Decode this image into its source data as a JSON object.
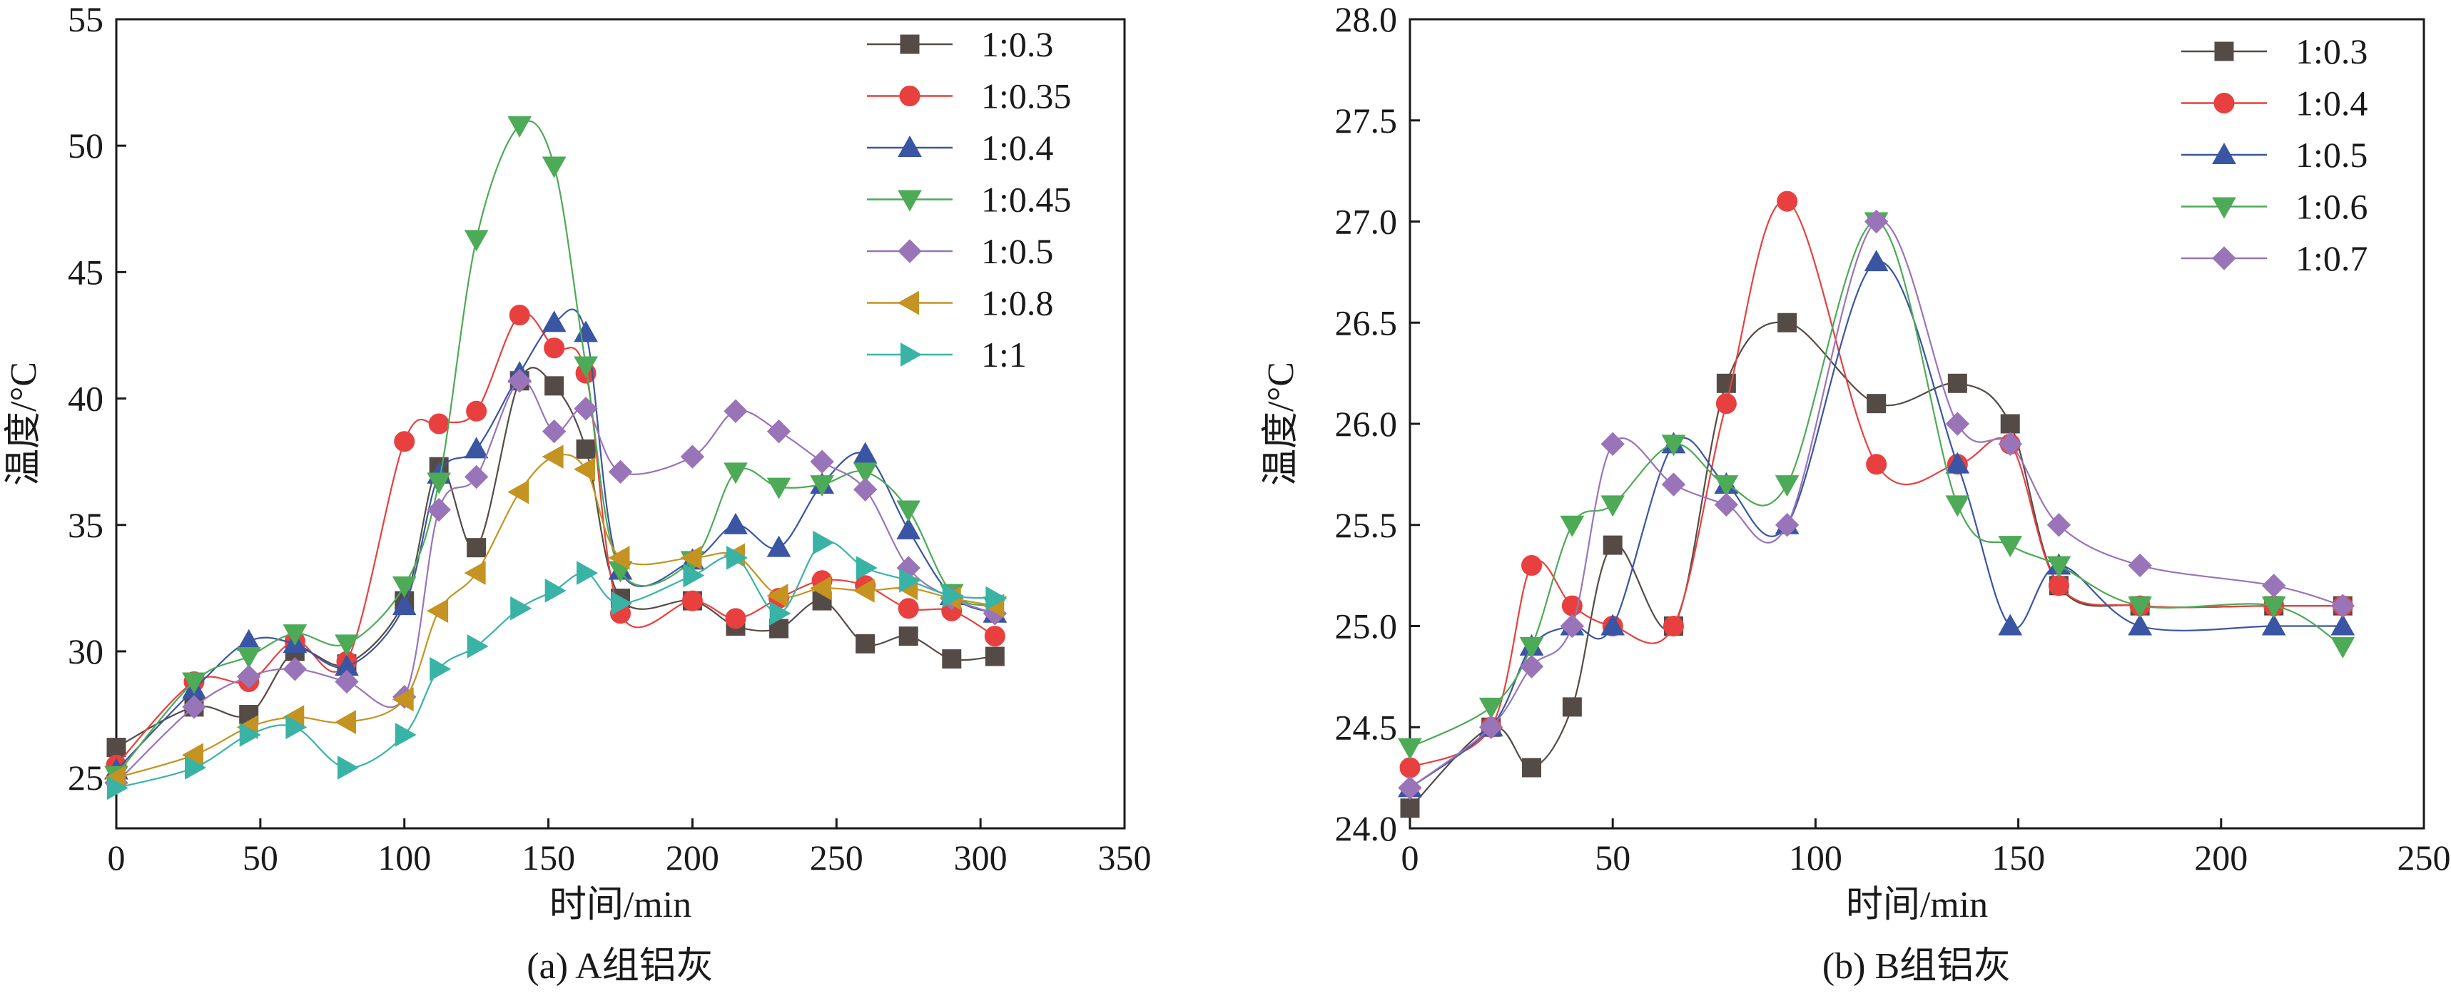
{
  "figure": {
    "panels": [
      "a",
      "b"
    ]
  },
  "chart_data": [
    {
      "type": "line",
      "panel": "a",
      "caption": "(a) A组铝灰",
      "title": "",
      "xlabel": "时间/min",
      "ylabel": "温度/°C",
      "xlim": [
        0,
        350
      ],
      "ylim": [
        23,
        55
      ],
      "xticks": [
        0,
        50,
        100,
        150,
        200,
        250,
        300,
        350
      ],
      "yticks": [
        25,
        30,
        35,
        40,
        45,
        50,
        55
      ],
      "legend_position": "top-right",
      "series": [
        {
          "name": "1:0.3",
          "color": "#554b46",
          "marker": "square",
          "points": [
            [
              0,
              26.2
            ],
            [
              27,
              27.8
            ],
            [
              46,
              27.5
            ],
            [
              62,
              30
            ],
            [
              80,
              29.5
            ],
            [
              100,
              32
            ],
            [
              112,
              37.3
            ],
            [
              125,
              34.1
            ],
            [
              140,
              40.7
            ],
            [
              152,
              40.5
            ],
            [
              163,
              38
            ],
            [
              175,
              32.1
            ],
            [
              200,
              32
            ],
            [
              215,
              31
            ],
            [
              230,
              30.9
            ],
            [
              245,
              32
            ],
            [
              260,
              30.3
            ],
            [
              275,
              30.6
            ],
            [
              290,
              29.7
            ],
            [
              305,
              29.8
            ]
          ]
        },
        {
          "name": "1:0.35",
          "color": "#e8403e",
          "marker": "circle",
          "points": [
            [
              0,
              25.5
            ],
            [
              27,
              28.8
            ],
            [
              46,
              28.8
            ],
            [
              62,
              30.4
            ],
            [
              80,
              29.6
            ],
            [
              100,
              38.3
            ],
            [
              112,
              39
            ],
            [
              125,
              39.5
            ],
            [
              140,
              43.3
            ],
            [
              152,
              42
            ],
            [
              163,
              41
            ],
            [
              175,
              31.5
            ],
            [
              200,
              32
            ],
            [
              215,
              31.3
            ],
            [
              230,
              32.1
            ],
            [
              245,
              32.8
            ],
            [
              260,
              32.6
            ],
            [
              275,
              31.7
            ],
            [
              290,
              31.6
            ],
            [
              305,
              30.6
            ]
          ]
        },
        {
          "name": "1:0.4",
          "color": "#3a55a3",
          "marker": "triangle-up",
          "points": [
            [
              0,
              25.3
            ],
            [
              27,
              28.5
            ],
            [
              46,
              30.4
            ],
            [
              62,
              30.3
            ],
            [
              80,
              29.4
            ],
            [
              100,
              31.8
            ],
            [
              112,
              37
            ],
            [
              125,
              38
            ],
            [
              140,
              41
            ],
            [
              152,
              43
            ],
            [
              163,
              42.6
            ],
            [
              175,
              33.2
            ],
            [
              200,
              33.6
            ],
            [
              215,
              35
            ],
            [
              230,
              34.1
            ],
            [
              245,
              36.6
            ],
            [
              260,
              37.8
            ],
            [
              275,
              34.8
            ],
            [
              290,
              32.2
            ],
            [
              305,
              31.5
            ]
          ]
        },
        {
          "name": "1:0.45",
          "color": "#4daa57",
          "marker": "triangle-down",
          "points": [
            [
              0,
              25.1
            ],
            [
              27,
              28.8
            ],
            [
              46,
              29.8
            ],
            [
              62,
              30.7
            ],
            [
              80,
              30.3
            ],
            [
              100,
              32.6
            ],
            [
              112,
              36.7
            ],
            [
              125,
              46.3
            ],
            [
              140,
              50.8
            ],
            [
              152,
              49.2
            ],
            [
              163,
              41.3
            ],
            [
              175,
              33.2
            ],
            [
              200,
              33.6
            ],
            [
              215,
              37.1
            ],
            [
              230,
              36.5
            ],
            [
              245,
              36.6
            ],
            [
              260,
              37.1
            ],
            [
              275,
              35.6
            ],
            [
              290,
              32.3
            ],
            [
              305,
              31.8
            ]
          ]
        },
        {
          "name": "1:0.5",
          "color": "#9a74b8",
          "marker": "diamond",
          "points": [
            [
              0,
              24.8
            ],
            [
              27,
              27.8
            ],
            [
              46,
              29
            ],
            [
              62,
              29.3
            ],
            [
              80,
              28.8
            ],
            [
              100,
              28.2
            ],
            [
              112,
              35.6
            ],
            [
              125,
              36.9
            ],
            [
              140,
              40.7
            ],
            [
              152,
              38.7
            ],
            [
              163,
              39.6
            ],
            [
              175,
              37.1
            ],
            [
              200,
              37.7
            ],
            [
              215,
              39.5
            ],
            [
              230,
              38.7
            ],
            [
              245,
              37.5
            ],
            [
              260,
              36.4
            ],
            [
              275,
              33.3
            ],
            [
              290,
              32.1
            ],
            [
              305,
              31.5
            ]
          ]
        },
        {
          "name": "1:0.8",
          "color": "#c49321",
          "marker": "triangle-left",
          "points": [
            [
              0,
              25
            ],
            [
              27,
              25.9
            ],
            [
              46,
              27
            ],
            [
              62,
              27.4
            ],
            [
              80,
              27.2
            ],
            [
              100,
              28.1
            ],
            [
              112,
              31.6
            ],
            [
              125,
              33.1
            ],
            [
              140,
              36.3
            ],
            [
              152,
              37.7
            ],
            [
              163,
              37.2
            ],
            [
              175,
              33.7
            ],
            [
              200,
              33.7
            ],
            [
              215,
              33.8
            ],
            [
              230,
              32.2
            ],
            [
              245,
              32.5
            ],
            [
              260,
              32.4
            ],
            [
              275,
              32.5
            ],
            [
              290,
              32.1
            ],
            [
              305,
              31.8
            ]
          ]
        },
        {
          "name": "1:1",
          "color": "#39b3a6",
          "marker": "triangle-right",
          "points": [
            [
              0,
              24.6
            ],
            [
              27,
              25.4
            ],
            [
              46,
              26.7
            ],
            [
              62,
              27
            ],
            [
              80,
              25.4
            ],
            [
              100,
              26.7
            ],
            [
              112,
              29.3
            ],
            [
              125,
              30.2
            ],
            [
              140,
              31.7
            ],
            [
              152,
              32.4
            ],
            [
              163,
              33.1
            ],
            [
              175,
              31.9
            ],
            [
              200,
              33
            ],
            [
              215,
              33.7
            ],
            [
              230,
              31.5
            ],
            [
              245,
              34.3
            ],
            [
              260,
              33.3
            ],
            [
              275,
              32.8
            ],
            [
              290,
              32.2
            ],
            [
              305,
              32.1
            ]
          ]
        }
      ]
    },
    {
      "type": "line",
      "panel": "b",
      "caption": "(b) B组铝灰",
      "title": "",
      "xlabel": "时间/min",
      "ylabel": "温度/°C",
      "xlim": [
        0,
        250
      ],
      "ylim": [
        24.0,
        28.0
      ],
      "xticks": [
        0,
        50,
        100,
        150,
        200,
        250
      ],
      "yticks": [
        24.0,
        24.5,
        25.0,
        25.5,
        26.0,
        26.5,
        27.0,
        27.5,
        28.0
      ],
      "ytick_labels": [
        "24.0",
        "24.5",
        "25.0",
        "25.5",
        "26.0",
        "26.5",
        "27.0",
        "27.5",
        "28.0"
      ],
      "legend_position": "top-right",
      "series": [
        {
          "name": "1:0.3",
          "color": "#554b46",
          "marker": "square",
          "points": [
            [
              0,
              24.1
            ],
            [
              20,
              24.5
            ],
            [
              30,
              24.3
            ],
            [
              40,
              24.6
            ],
            [
              50,
              25.4
            ],
            [
              65,
              25
            ],
            [
              78,
              26.2
            ],
            [
              93,
              26.5
            ],
            [
              115,
              26.1
            ],
            [
              135,
              26.2
            ],
            [
              148,
              26
            ],
            [
              160,
              25.2
            ],
            [
              180,
              25.1
            ],
            [
              213,
              25.1
            ],
            [
              230,
              25.1
            ]
          ]
        },
        {
          "name": "1:0.4",
          "color": "#e8403e",
          "marker": "circle",
          "points": [
            [
              0,
              24.3
            ],
            [
              20,
              24.5
            ],
            [
              30,
              25.3
            ],
            [
              40,
              25.1
            ],
            [
              50,
              25
            ],
            [
              65,
              25
            ],
            [
              78,
              26.1
            ],
            [
              93,
              27.1
            ],
            [
              115,
              25.8
            ],
            [
              135,
              25.8
            ],
            [
              148,
              25.9
            ],
            [
              160,
              25.2
            ],
            [
              180,
              25.1
            ],
            [
              213,
              25.1
            ],
            [
              230,
              25.1
            ]
          ]
        },
        {
          "name": "1:0.5",
          "color": "#3a55a3",
          "marker": "triangle-up",
          "points": [
            [
              0,
              24.2
            ],
            [
              20,
              24.5
            ],
            [
              30,
              24.9
            ],
            [
              40,
              25
            ],
            [
              50,
              25
            ],
            [
              65,
              25.9
            ],
            [
              78,
              25.7
            ],
            [
              93,
              25.5
            ],
            [
              115,
              26.8
            ],
            [
              135,
              25.8
            ],
            [
              148,
              25
            ],
            [
              160,
              25.3
            ],
            [
              180,
              25
            ],
            [
              213,
              25
            ],
            [
              230,
              25
            ]
          ]
        },
        {
          "name": "1:0.6",
          "color": "#4daa57",
          "marker": "triangle-down",
          "points": [
            [
              0,
              24.4
            ],
            [
              20,
              24.6
            ],
            [
              30,
              24.9
            ],
            [
              40,
              25.5
            ],
            [
              50,
              25.6
            ],
            [
              65,
              25.9
            ],
            [
              78,
              25.7
            ],
            [
              93,
              25.7
            ],
            [
              115,
              27
            ],
            [
              135,
              25.6
            ],
            [
              148,
              25.4
            ],
            [
              160,
              25.3
            ],
            [
              180,
              25.1
            ],
            [
              213,
              25.1
            ],
            [
              230,
              24.9
            ]
          ]
        },
        {
          "name": "1:0.7",
          "color": "#9a74b8",
          "marker": "diamond",
          "points": [
            [
              0,
              24.2
            ],
            [
              20,
              24.5
            ],
            [
              30,
              24.8
            ],
            [
              40,
              25
            ],
            [
              50,
              25.9
            ],
            [
              65,
              25.7
            ],
            [
              78,
              25.6
            ],
            [
              93,
              25.5
            ],
            [
              115,
              27
            ],
            [
              135,
              26
            ],
            [
              148,
              25.9
            ],
            [
              160,
              25.5
            ],
            [
              180,
              25.3
            ],
            [
              213,
              25.2
            ],
            [
              230,
              25.1
            ]
          ]
        }
      ]
    }
  ]
}
